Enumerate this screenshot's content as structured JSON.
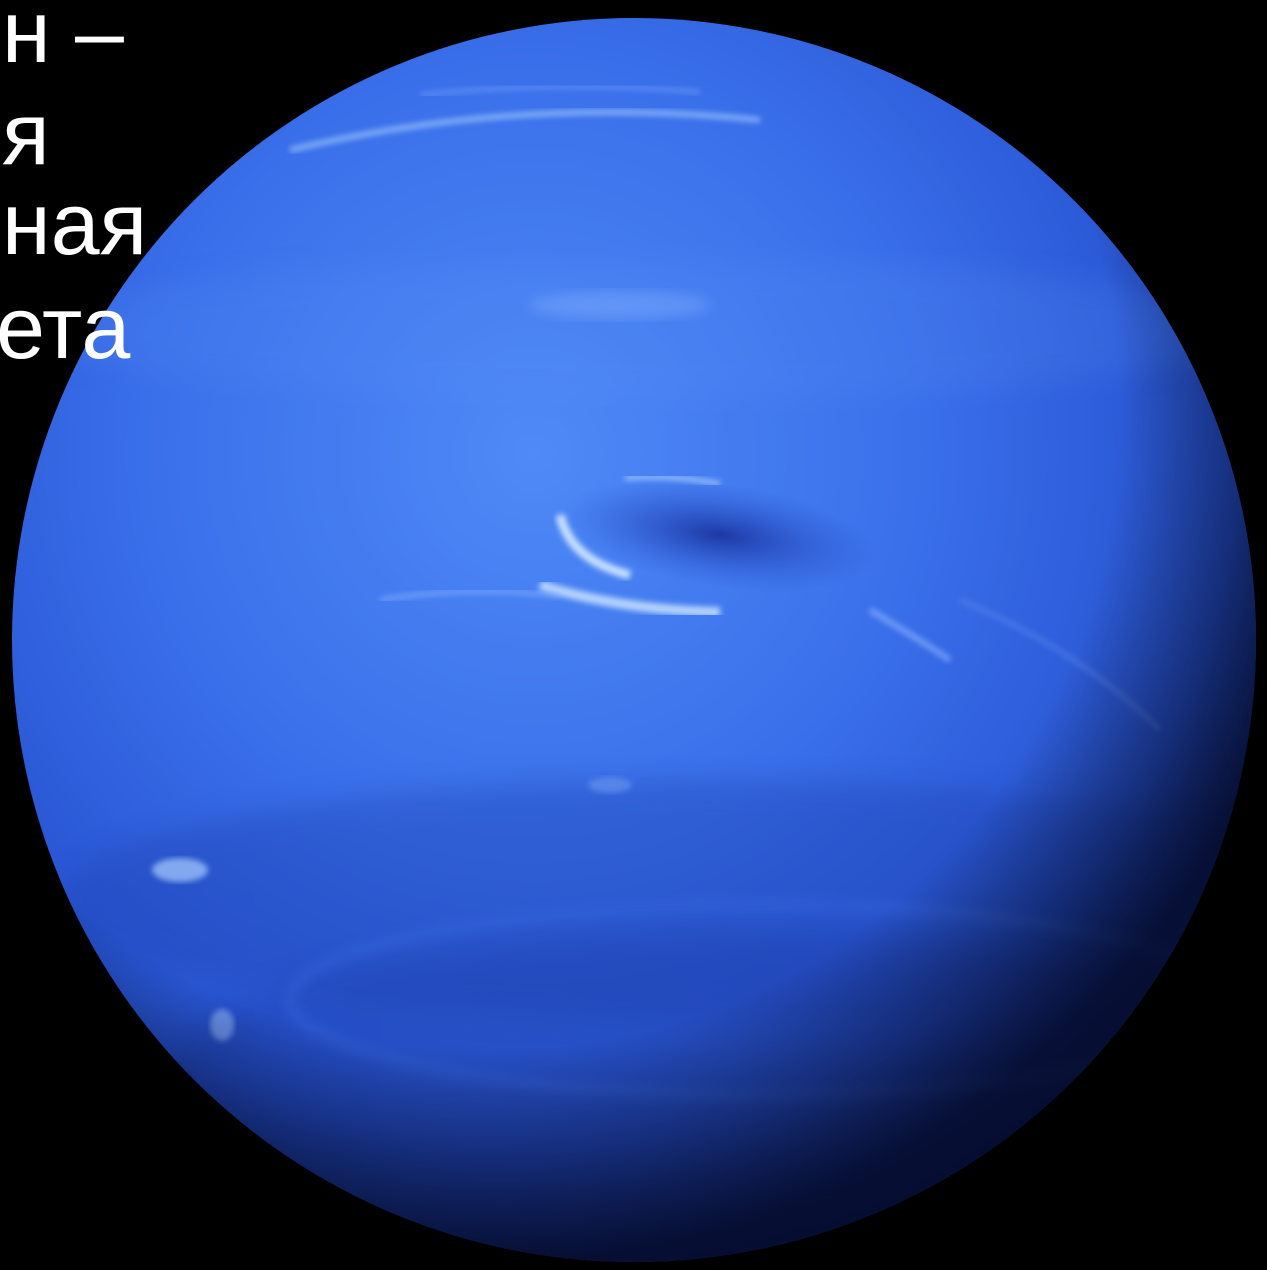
{
  "caption": {
    "lines": [
      "н –",
      "я",
      "ная",
      "ета"
    ]
  },
  "colors": {
    "background": "#000000",
    "planet_base": "#2f5ee0",
    "planet_light": "#4d84f5",
    "planet_dark": "#1d3fb0",
    "cloud_highlight": "#c8e4ff",
    "dark_spot": "#1f3aa8",
    "caption_text": "#ffffff"
  },
  "icons": {
    "planet": "neptune-planet-illustration"
  }
}
